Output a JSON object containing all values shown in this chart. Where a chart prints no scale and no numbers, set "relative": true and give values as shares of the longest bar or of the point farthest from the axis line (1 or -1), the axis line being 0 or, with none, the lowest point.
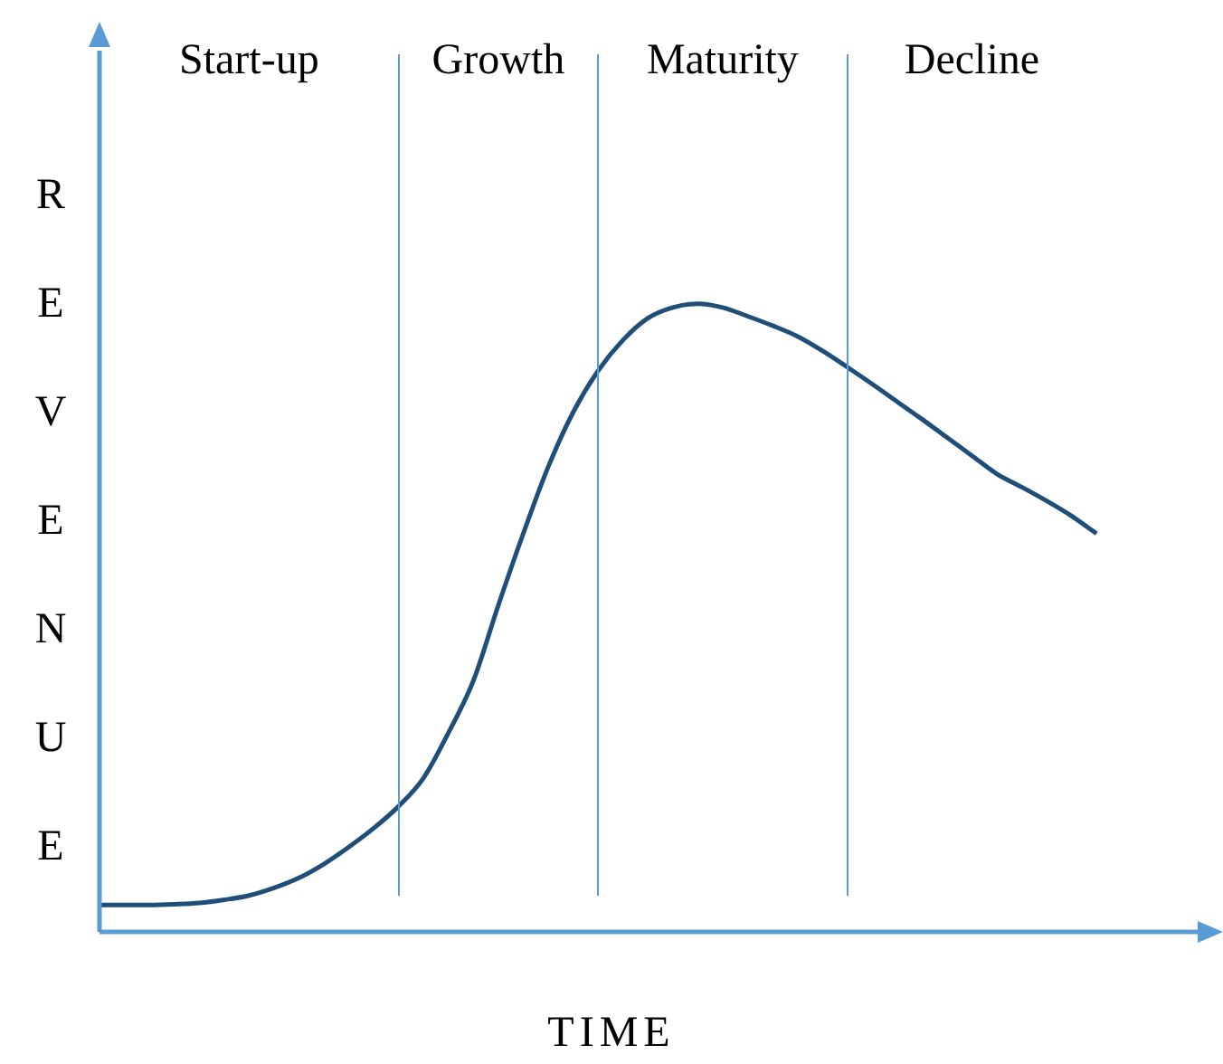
{
  "chart_data": {
    "type": "line",
    "relative": true,
    "xlabel": "TIME",
    "ylabel": "REVENUE",
    "color": "#1f4e79",
    "marker": "none",
    "legend": false,
    "categories": [
      null,
      null,
      null,
      null,
      null,
      null,
      null,
      null,
      null,
      null,
      null,
      null,
      null,
      null,
      null,
      null,
      null,
      null,
      null,
      null,
      null,
      null,
      null,
      null,
      null,
      null,
      null,
      null,
      null,
      null,
      null,
      null,
      null,
      null,
      null,
      null,
      null,
      null,
      null,
      null,
      null,
      null,
      null,
      null,
      null,
      null
    ],
    "values": [
      0.043,
      0.043,
      0.043,
      0.044,
      0.046,
      0.051,
      0.058,
      0.07,
      0.086,
      0.108,
      0.135,
      0.165,
      0.2,
      0.245,
      0.317,
      0.4,
      0.52,
      0.634,
      0.74,
      0.827,
      0.893,
      0.942,
      0.977,
      0.994,
      1,
      0.994,
      0.98,
      0.965,
      0.948,
      0.925,
      0.899,
      0.872,
      0.844,
      0.816,
      0.787,
      0.758,
      0.729,
      0.708,
      0.686,
      0.662,
      0.634,
      null,
      null,
      null,
      null,
      null
    ],
    "annotations": [
      "Start-up",
      "Growth",
      "Maturity",
      "Decline"
    ]
  }
}
